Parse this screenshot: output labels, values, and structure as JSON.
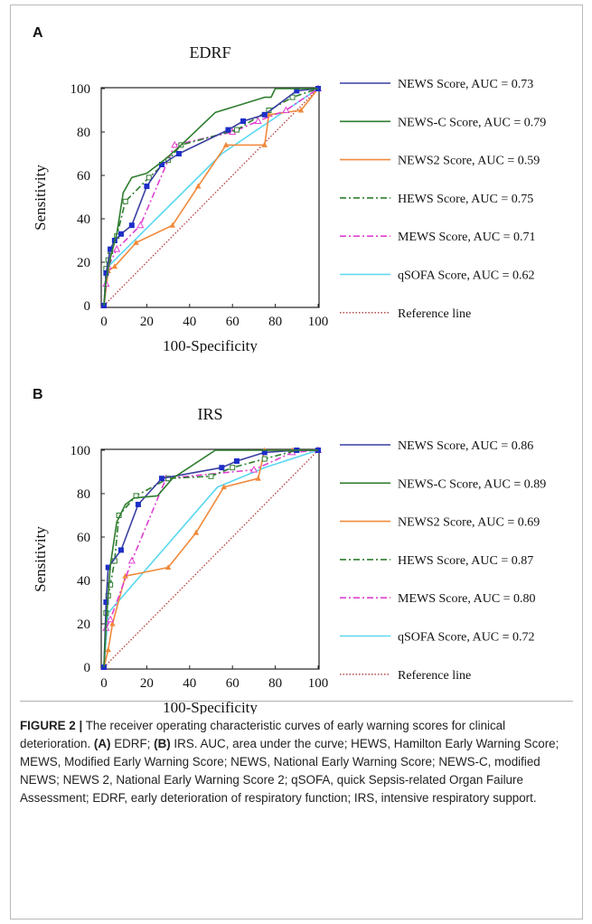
{
  "colors": {
    "NEWS": "#3a3fa0",
    "NEWS-C": "#2e7d2e",
    "NEWS2": "#f08a3c",
    "HEWS": "#2e7d2e",
    "MEWS": "#e040d0",
    "qSOFA": "#5ad8f0",
    "Reference": "#b03a3a"
  },
  "chart_data": [
    {
      "panel": "A",
      "type": "line",
      "title": "EDRF",
      "xlabel": "100-Specificity",
      "ylabel": "Sensitivity",
      "xlim": [
        0,
        100
      ],
      "ylim": [
        0,
        100
      ],
      "xticks": [
        "0",
        "20",
        "40",
        "60",
        "80",
        "100"
      ],
      "yticks": [
        "0",
        "20",
        "40",
        "60",
        "80",
        "100"
      ],
      "grid": false,
      "legend_position": "right",
      "series": [
        {
          "name": "NEWS Score, AUC = 0.73",
          "key": "NEWS",
          "style": "solid",
          "marker": "filled-square",
          "points": [
            [
              0,
              0
            ],
            [
              1,
              15
            ],
            [
              3,
              26
            ],
            [
              5,
              30
            ],
            [
              8,
              33
            ],
            [
              13,
              37
            ],
            [
              20,
              55
            ],
            [
              27,
              65
            ],
            [
              35,
              70
            ],
            [
              58,
              81
            ],
            [
              65,
              85
            ],
            [
              75,
              88
            ],
            [
              90,
              99
            ],
            [
              100,
              100
            ]
          ]
        },
        {
          "name": "NEWS-C Score, AUC = 0.79",
          "key": "NEWS-C",
          "style": "solid",
          "marker": "none",
          "points": [
            [
              0,
              0
            ],
            [
              1,
              12
            ],
            [
              3,
              22
            ],
            [
              6,
              33
            ],
            [
              9,
              52
            ],
            [
              13,
              59
            ],
            [
              20,
              61
            ],
            [
              28,
              67
            ],
            [
              35,
              73
            ],
            [
              52,
              89
            ],
            [
              75,
              96
            ],
            [
              78,
              96
            ],
            [
              80,
              100
            ],
            [
              90,
              100
            ],
            [
              100,
              100
            ]
          ]
        },
        {
          "name": "NEWS2 Score, AUC = 0.59",
          "key": "NEWS2",
          "style": "solid",
          "marker": "filled-triangle",
          "points": [
            [
              0,
              0
            ],
            [
              2,
              16
            ],
            [
              5,
              18
            ],
            [
              15,
              29
            ],
            [
              32,
              37
            ],
            [
              44,
              55
            ],
            [
              57,
              74
            ],
            [
              75,
              74
            ],
            [
              77,
              88
            ],
            [
              92,
              90
            ],
            [
              100,
              100
            ]
          ]
        },
        {
          "name": "HEWS Score, AUC = 0.75",
          "key": "HEWS",
          "style": "dashdot",
          "marker": "open-square",
          "points": [
            [
              0,
              0
            ],
            [
              1,
              17
            ],
            [
              2,
              21
            ],
            [
              3,
              25
            ],
            [
              6,
              32
            ],
            [
              10,
              48
            ],
            [
              21,
              59
            ],
            [
              30,
              67
            ],
            [
              36,
              74
            ],
            [
              62,
              81
            ],
            [
              77,
              90
            ],
            [
              88,
              96
            ],
            [
              100,
              100
            ]
          ]
        },
        {
          "name": "MEWS Score, AUC = 0.71",
          "key": "MEWS",
          "style": "dashdot",
          "marker": "open-triangle",
          "points": [
            [
              0,
              0
            ],
            [
              1,
              10
            ],
            [
              2,
              18
            ],
            [
              6,
              26
            ],
            [
              17,
              37
            ],
            [
              33,
              74
            ],
            [
              60,
              80
            ],
            [
              72,
              85
            ],
            [
              85,
              90
            ],
            [
              100,
              100
            ]
          ]
        },
        {
          "name": "qSOFA Score, AUC = 0.62",
          "key": "qSOFA",
          "style": "solid",
          "marker": "none",
          "points": [
            [
              0,
              0
            ],
            [
              2,
              18
            ],
            [
              55,
              70
            ],
            [
              100,
              100
            ]
          ]
        },
        {
          "name": "Reference line",
          "key": "Reference",
          "style": "dotted",
          "marker": "none",
          "points": [
            [
              0,
              0
            ],
            [
              100,
              100
            ]
          ]
        }
      ]
    },
    {
      "panel": "B",
      "type": "line",
      "title": "IRS",
      "xlabel": "100-Specificity",
      "ylabel": "Sensitivity",
      "xlim": [
        0,
        100
      ],
      "ylim": [
        0,
        100
      ],
      "xticks": [
        "0",
        "20",
        "40",
        "60",
        "80",
        "100"
      ],
      "yticks": [
        "0",
        "20",
        "40",
        "60",
        "80",
        "100"
      ],
      "grid": false,
      "legend_position": "right",
      "series": [
        {
          "name": "NEWS Score, AUC = 0.86",
          "key": "NEWS",
          "style": "solid",
          "marker": "filled-square",
          "points": [
            [
              0,
              0
            ],
            [
              1,
              30
            ],
            [
              2,
              46
            ],
            [
              8,
              54
            ],
            [
              16,
              75
            ],
            [
              27,
              87
            ],
            [
              55,
              92
            ],
            [
              62,
              95
            ],
            [
              75,
              99
            ],
            [
              90,
              100
            ],
            [
              100,
              100
            ]
          ]
        },
        {
          "name": "NEWS-C Score, AUC = 0.89",
          "key": "NEWS-C",
          "style": "solid",
          "marker": "none",
          "points": [
            [
              0,
              0
            ],
            [
              1,
              20
            ],
            [
              3,
              47
            ],
            [
              6,
              67
            ],
            [
              10,
              75
            ],
            [
              14,
              78
            ],
            [
              25,
              79
            ],
            [
              32,
              87
            ],
            [
              52,
              100
            ],
            [
              75,
              100
            ],
            [
              100,
              100
            ]
          ]
        },
        {
          "name": "NEWS2 Score, AUC = 0.69",
          "key": "NEWS2",
          "style": "solid",
          "marker": "filled-triangle",
          "points": [
            [
              0,
              0
            ],
            [
              2,
              8
            ],
            [
              4,
              20
            ],
            [
              10,
              42
            ],
            [
              30,
              46
            ],
            [
              43,
              62
            ],
            [
              56,
              83
            ],
            [
              72,
              87
            ],
            [
              75,
              100
            ],
            [
              88,
              100
            ],
            [
              100,
              100
            ]
          ]
        },
        {
          "name": "HEWS Score, AUC = 0.87",
          "key": "HEWS",
          "style": "dashdot",
          "marker": "open-square",
          "points": [
            [
              0,
              0
            ],
            [
              1,
              25
            ],
            [
              2,
              33
            ],
            [
              3,
              38
            ],
            [
              5,
              49
            ],
            [
              7,
              70
            ],
            [
              15,
              79
            ],
            [
              30,
              87
            ],
            [
              50,
              88
            ],
            [
              60,
              92
            ],
            [
              75,
              96
            ],
            [
              90,
              100
            ],
            [
              100,
              100
            ]
          ]
        },
        {
          "name": "MEWS Score, AUC = 0.80",
          "key": "MEWS",
          "style": "dashdot",
          "marker": "open-triangle",
          "points": [
            [
              0,
              0
            ],
            [
              1,
              18
            ],
            [
              3,
              22
            ],
            [
              13,
              49
            ],
            [
              29,
              87
            ],
            [
              70,
              91
            ],
            [
              88,
              99
            ],
            [
              100,
              100
            ]
          ]
        },
        {
          "name": "qSOFA Score, AUC = 0.72",
          "key": "qSOFA",
          "style": "solid",
          "marker": "none",
          "points": [
            [
              0,
              0
            ],
            [
              2,
              25
            ],
            [
              53,
              83
            ],
            [
              75,
              92
            ],
            [
              100,
              100
            ]
          ]
        },
        {
          "name": "Reference line",
          "key": "Reference",
          "style": "dotted",
          "marker": "none",
          "points": [
            [
              0,
              0
            ],
            [
              100,
              100
            ]
          ]
        }
      ]
    }
  ],
  "caption": {
    "label": "FIGURE 2 |",
    "part1": " The receiver operating characteristic curves of early warning scores for clinical deterioration. ",
    "a_label": "(A)",
    "part2": " EDRF; ",
    "b_label": "(B)",
    "part3": " IRS. AUC, area under the curve; HEWS, Hamilton Early Warning Score; MEWS, Modified Early Warning Score; NEWS, National Early Warning Score; NEWS-C, modified NEWS; NEWS 2, National Early Warning Score 2; qSOFA, quick Sepsis-related Organ Failure Assessment; EDRF, early deterioration of respiratory function; IRS, intensive respiratory support."
  }
}
